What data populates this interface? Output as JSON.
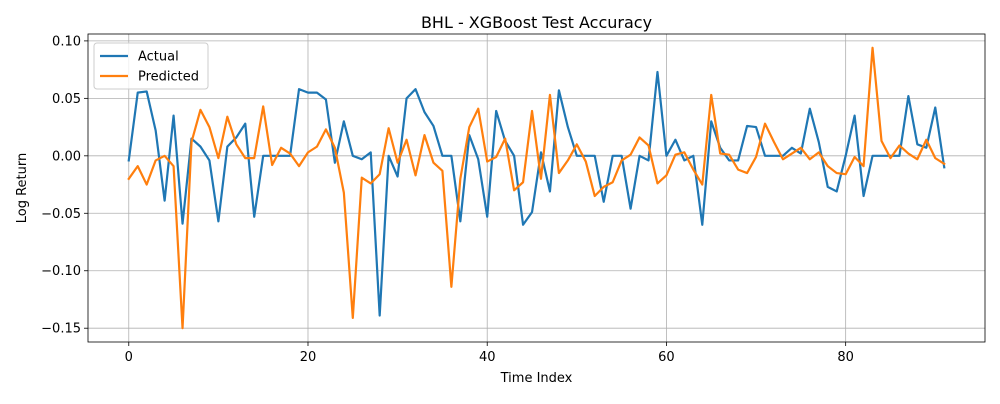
{
  "chart_data": {
    "type": "line",
    "title": "BHL - XGBoost Test Accuracy",
    "xlabel": "Time Index",
    "ylabel": "Log Return",
    "xlim": [
      -4.55,
      95.55
    ],
    "ylim": [
      -0.162,
      0.106
    ],
    "xticks": [
      0,
      20,
      40,
      60,
      80
    ],
    "xtick_labels": [
      "0",
      "20",
      "40",
      "60",
      "80"
    ],
    "yticks": [
      -0.15,
      -0.1,
      -0.05,
      0.0,
      0.05,
      0.1
    ],
    "ytick_labels": [
      "−0.15",
      "−0.10",
      "−0.05",
      "0.00",
      "0.05",
      "0.10"
    ],
    "grid": true,
    "legend_position": "top-left",
    "x": [
      0,
      1,
      2,
      3,
      4,
      5,
      6,
      7,
      8,
      9,
      10,
      11,
      12,
      13,
      14,
      15,
      16,
      17,
      18,
      19,
      20,
      21,
      22,
      23,
      24,
      25,
      26,
      27,
      28,
      29,
      30,
      31,
      32,
      33,
      34,
      35,
      36,
      37,
      38,
      39,
      40,
      41,
      42,
      43,
      44,
      45,
      46,
      47,
      48,
      49,
      50,
      51,
      52,
      53,
      54,
      55,
      56,
      57,
      58,
      59,
      60,
      61,
      62,
      63,
      64,
      65,
      66,
      67,
      68,
      69,
      70,
      71,
      72,
      73,
      74,
      75,
      76,
      77,
      78,
      79,
      80,
      81,
      82,
      83,
      84,
      85,
      86,
      87,
      88,
      89,
      90,
      91
    ],
    "series": [
      {
        "name": "Actual",
        "color": "#1f77b4",
        "values": [
          -0.004,
          0.055,
          0.056,
          0.022,
          -0.039,
          0.035,
          -0.059,
          0.015,
          0.008,
          -0.004,
          -0.057,
          0.008,
          0.016,
          0.028,
          -0.053,
          0.0,
          0.0,
          0.0,
          0.0,
          0.058,
          0.055,
          0.055,
          0.049,
          -0.006,
          0.03,
          0.0,
          -0.003,
          0.003,
          -0.139,
          0.0,
          -0.018,
          0.05,
          0.058,
          0.038,
          0.026,
          0.0,
          0.0,
          -0.057,
          0.018,
          -0.003,
          -0.053,
          0.039,
          0.013,
          0.0,
          -0.06,
          -0.049,
          0.003,
          -0.031,
          0.057,
          0.025,
          0.0,
          0.0,
          0.0,
          -0.04,
          0.0,
          0.0,
          -0.046,
          0.0,
          -0.004,
          0.073,
          0.0,
          0.014,
          -0.004,
          0.0,
          -0.06,
          0.03,
          0.007,
          -0.004,
          -0.004,
          0.026,
          0.025,
          0.0,
          0.0,
          0.0,
          0.007,
          0.002,
          0.041,
          0.012,
          -0.027,
          -0.031,
          0.0,
          0.035,
          -0.035,
          0.0,
          0.0,
          0.0,
          0.0,
          0.052,
          0.01,
          0.007,
          0.042,
          -0.01
        ]
      },
      {
        "name": "Predicted",
        "color": "#ff7f0e",
        "values": [
          -0.02,
          -0.009,
          -0.025,
          -0.004,
          0.0,
          -0.009,
          -0.15,
          0.012,
          0.04,
          0.025,
          -0.002,
          0.034,
          0.01,
          -0.002,
          -0.002,
          0.043,
          -0.008,
          0.007,
          0.002,
          -0.009,
          0.003,
          0.008,
          0.023,
          0.007,
          -0.032,
          -0.141,
          -0.019,
          -0.024,
          -0.016,
          0.024,
          -0.006,
          0.014,
          -0.017,
          0.018,
          -0.006,
          -0.013,
          -0.114,
          -0.02,
          0.025,
          0.041,
          -0.005,
          -0.001,
          0.015,
          -0.03,
          -0.023,
          0.039,
          -0.02,
          0.053,
          -0.015,
          -0.004,
          0.01,
          -0.005,
          -0.035,
          -0.027,
          -0.023,
          -0.004,
          0.001,
          0.016,
          0.009,
          -0.024,
          -0.017,
          0.001,
          0.003,
          -0.012,
          -0.025,
          0.053,
          0.002,
          0.001,
          -0.012,
          -0.015,
          -0.001,
          0.028,
          0.012,
          -0.003,
          0.002,
          0.007,
          -0.003,
          0.003,
          -0.009,
          -0.015,
          -0.016,
          -0.001,
          -0.009,
          0.094,
          0.013,
          -0.002,
          0.009,
          0.002,
          -0.003,
          0.014,
          -0.002,
          -0.007
        ]
      }
    ]
  }
}
